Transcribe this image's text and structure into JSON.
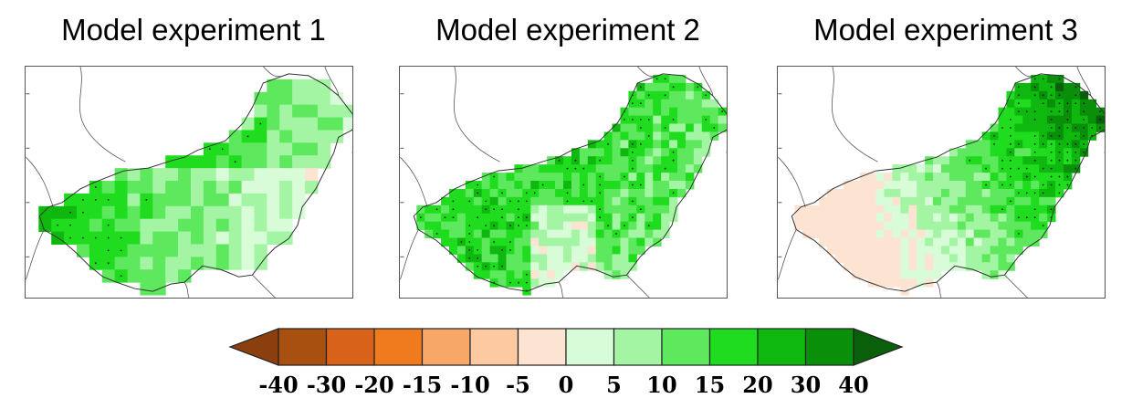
{
  "panels": [
    {
      "title": "Model experiment  1",
      "pattern": "west_and_north_high"
    },
    {
      "title": "Model experiment  2",
      "pattern": "mixed_moderate"
    },
    {
      "title": "Model experiment  3",
      "pattern": "east_high_west_low"
    }
  ],
  "colorbar": {
    "labels": [
      "-40",
      "-30",
      "-20",
      "-15",
      "-10",
      "-5",
      "0",
      "5",
      "10",
      "15",
      "20",
      "30",
      "40"
    ],
    "colors": [
      "#8b3f0f",
      "#a8500f",
      "#d9621a",
      "#f07a1e",
      "#f7a868",
      "#fcc9a0",
      "#fde3d1",
      "#d8fcd8",
      "#a3f5a3",
      "#5ee85e",
      "#1fdc1f",
      "#0fb80f",
      "#0a8f0a",
      "#0a5f0a"
    ],
    "extend": "both"
  }
}
